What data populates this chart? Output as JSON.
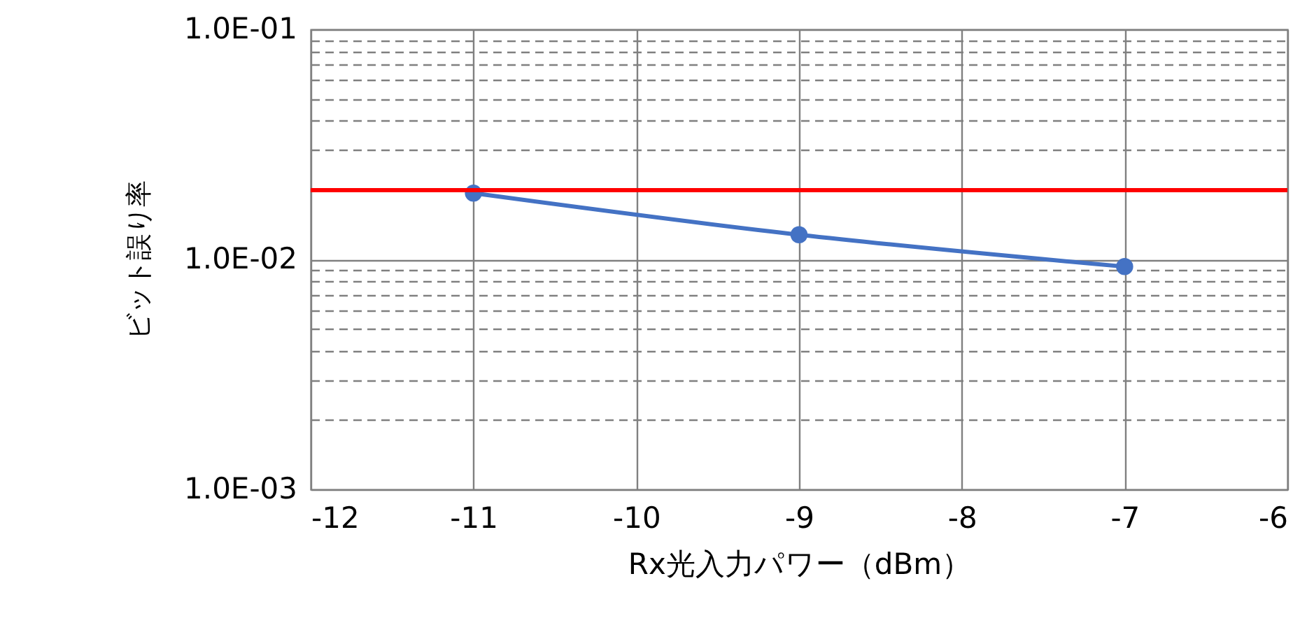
{
  "chart_data": {
    "type": "line",
    "xlabel": "Rx光入力パワー（dBm）",
    "ylabel": "ビット誤り率",
    "x": [
      -11,
      -9,
      -7
    ],
    "series": [
      {
        "color": "#4472c4",
        "values": [
          0.0194,
          0.0128,
          0.0093
        ]
      }
    ],
    "xlim": [
      -12,
      -6
    ],
    "xticks": [
      -12,
      -11,
      -10,
      -9,
      -8,
      -7,
      -6
    ],
    "ylim": [
      0.001,
      0.1
    ],
    "yticks": [
      {
        "value": 0.001,
        "label": "1.0E-03"
      },
      {
        "value": 0.002,
        "label": null
      },
      {
        "value": 0.003,
        "label": null
      },
      {
        "value": 0.004,
        "label": null
      },
      {
        "value": 0.005,
        "label": null
      },
      {
        "value": 0.006,
        "label": null
      },
      {
        "value": 0.007,
        "label": null
      },
      {
        "value": 0.008,
        "label": null
      },
      {
        "value": 0.009,
        "label": null
      },
      {
        "value": 0.01,
        "label": "1.0E-02"
      },
      {
        "value": 0.02,
        "label": null
      },
      {
        "value": 0.03,
        "label": null
      },
      {
        "value": 0.04,
        "label": null
      },
      {
        "value": 0.05,
        "label": null
      },
      {
        "value": 0.06,
        "label": null
      },
      {
        "value": 0.07,
        "label": null
      },
      {
        "value": 0.08,
        "label": null
      },
      {
        "value": 0.09,
        "label": null
      },
      {
        "value": 0.1,
        "label": "1.0E-01"
      }
    ],
    "log": true,
    "grid": true,
    "legend": false,
    "marker": "circle",
    "line_style": "solid",
    "ref_lines": [
      {
        "axis": "y",
        "value": 0.02,
        "color": "#ff0000"
      }
    ]
  }
}
